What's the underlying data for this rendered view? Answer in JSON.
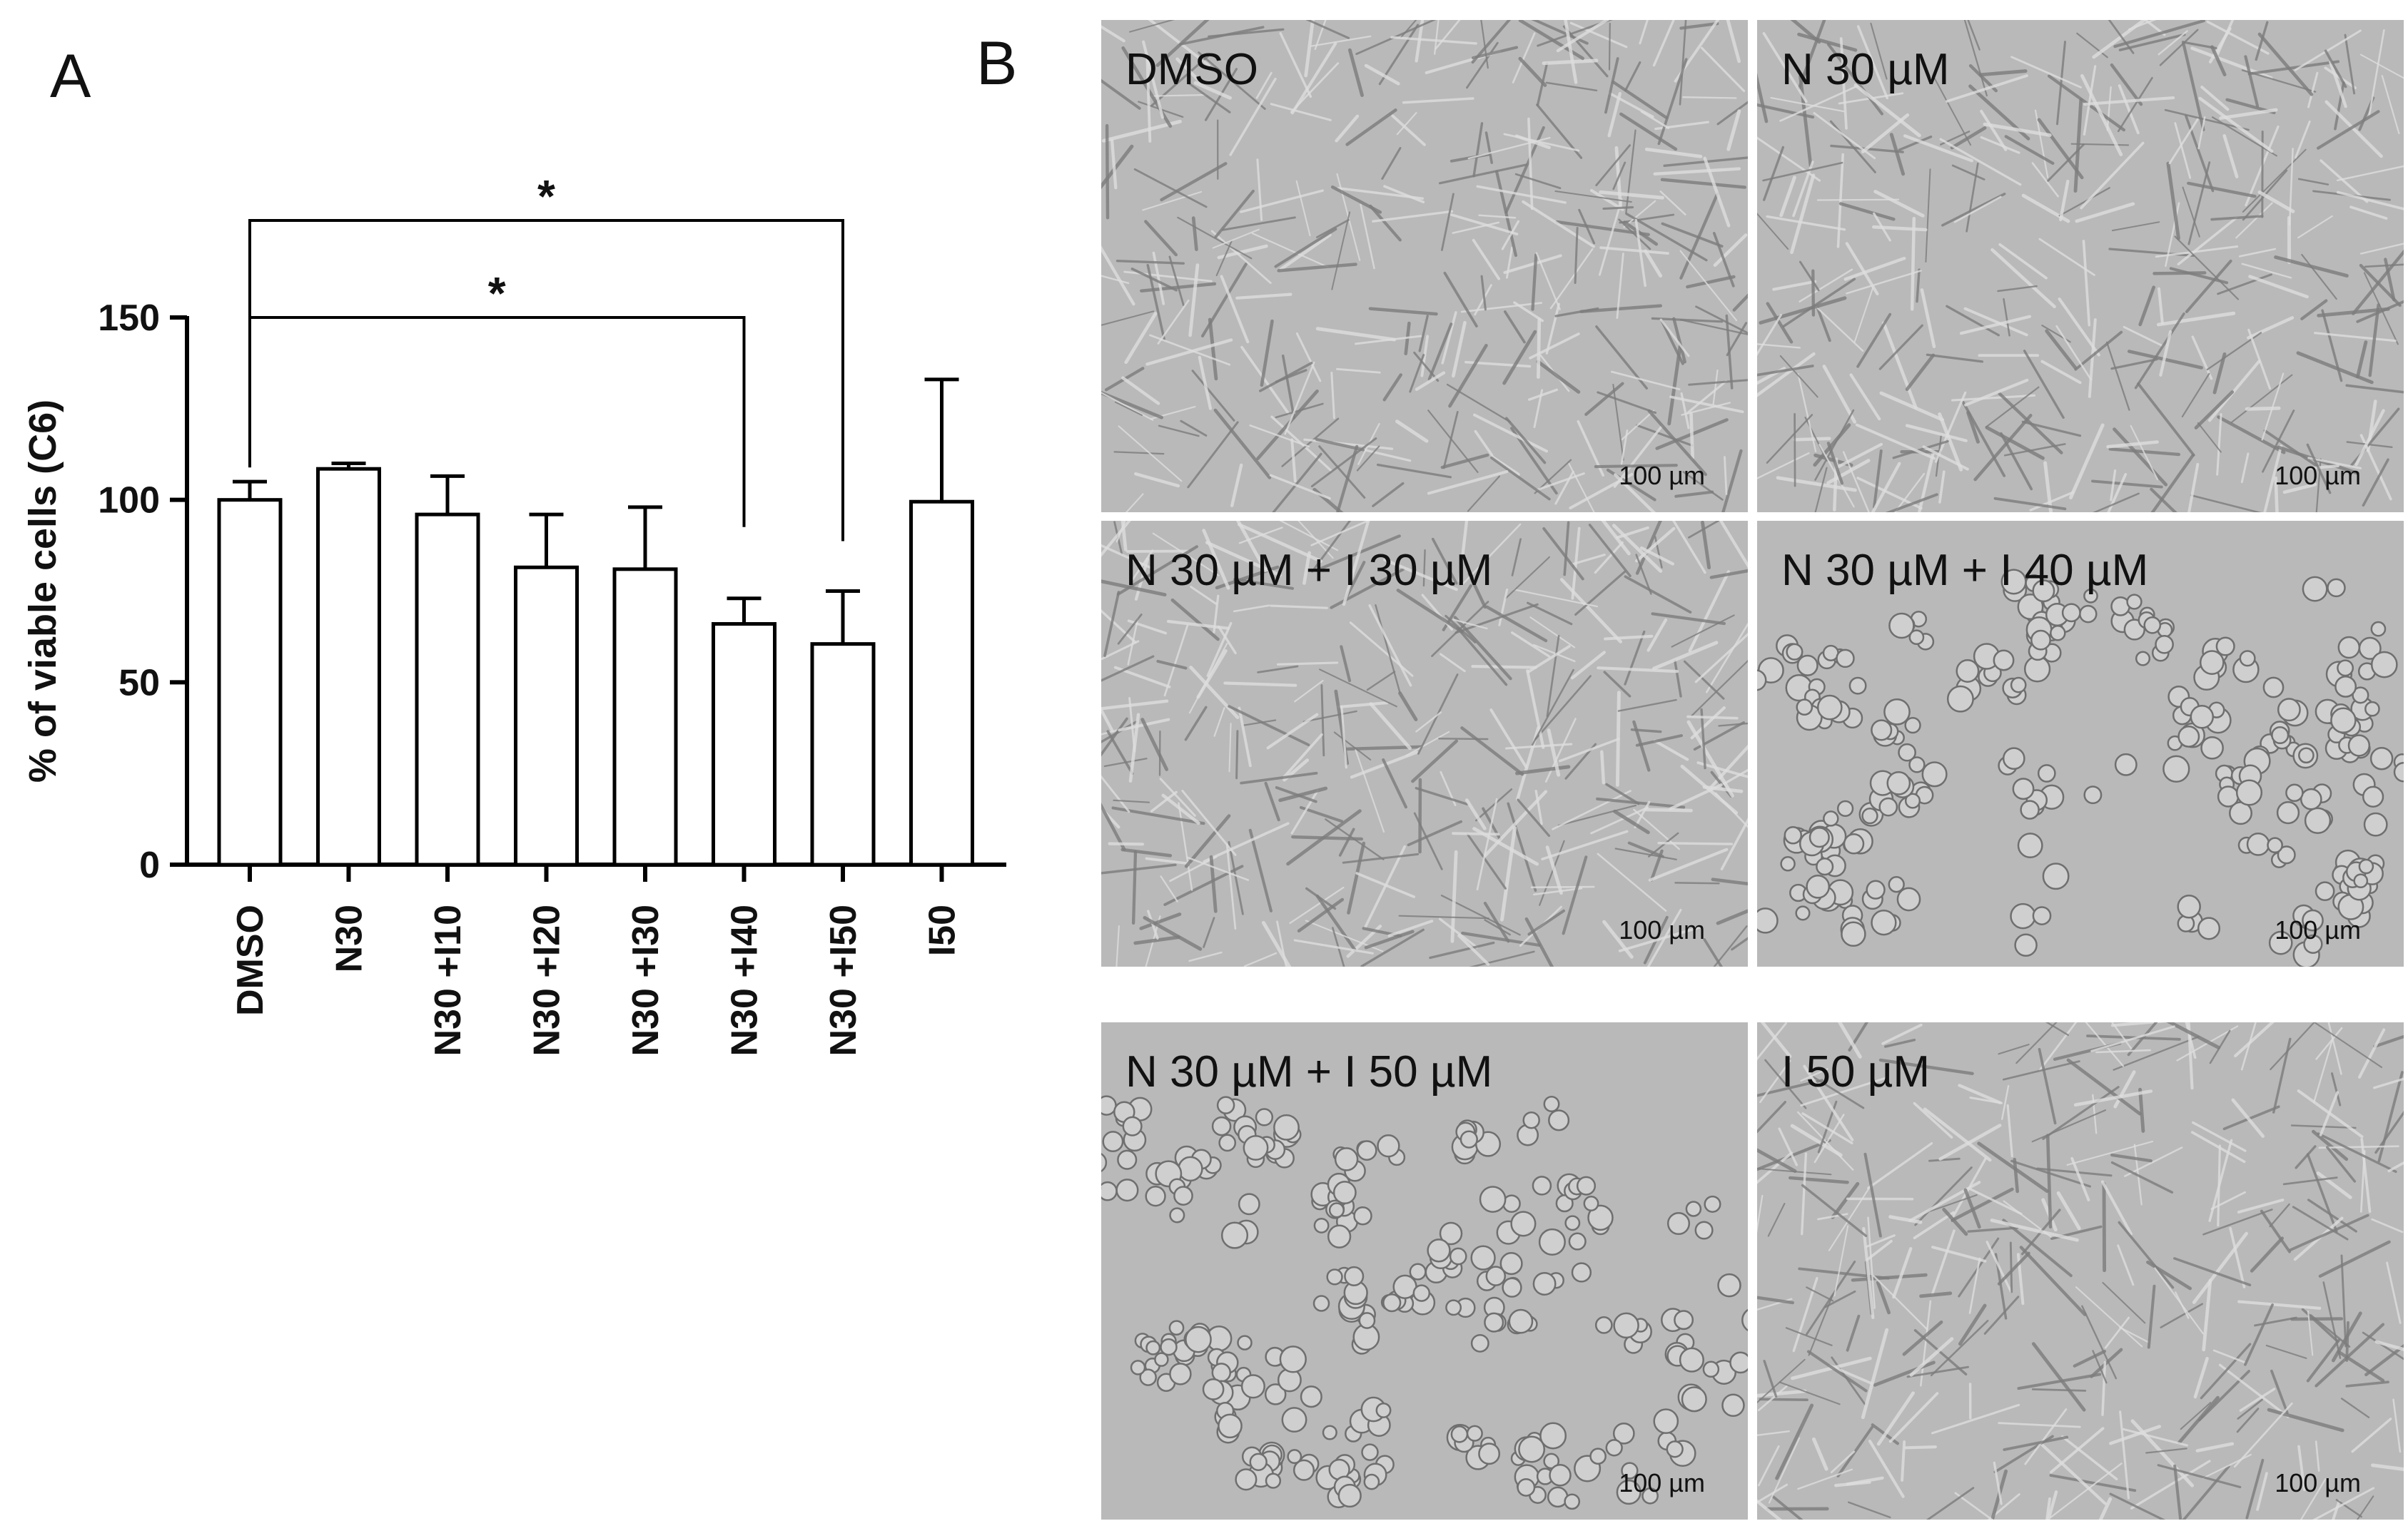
{
  "panel_a_letter": "A",
  "panel_b_letter": "B",
  "chart_data": {
    "type": "bar",
    "ylabel": "% of viable cells (C6)",
    "xlabel": "",
    "ylim": [
      0,
      150
    ],
    "yticks": [
      0,
      50,
      100,
      150
    ],
    "categories": [
      "DMSO",
      "N30",
      "N30 +I10",
      "N30 +I20",
      "N30 +I30",
      "N30 +I40",
      "N30 +I50",
      "I50"
    ],
    "values": [
      100,
      108.5,
      96,
      81.5,
      81,
      66,
      60.5,
      99.5
    ],
    "error_upper": [
      5,
      1.5,
      10.5,
      14.5,
      17,
      7,
      14.5,
      33.5
    ],
    "significance": [
      {
        "from": "DMSO",
        "to": "N30 +I40",
        "label": "*"
      },
      {
        "from": "DMSO",
        "to": "N30 +I50",
        "label": "*"
      }
    ],
    "grid": false,
    "bar_color": "#ffffff",
    "line_color": "#000000"
  },
  "micrographs": [
    {
      "label": "DMSO",
      "scale": "100 µm",
      "morphology": "confluent-spindle"
    },
    {
      "label": "N 30 µM",
      "scale": "100 µm",
      "morphology": "confluent-spindle"
    },
    {
      "label": "N 30 µM + I 30 µM",
      "scale": "100 µm",
      "morphology": "confluent-spindle"
    },
    {
      "label": "N 30 µM + I 40 µM",
      "scale": "100 µm",
      "morphology": "rounded-clusters"
    },
    {
      "label": "N 30 µM + I 50 µM",
      "scale": "100 µm",
      "morphology": "rounded-clusters"
    },
    {
      "label": "I 50 µM",
      "scale": "100 µm",
      "morphology": "confluent-spindle"
    }
  ]
}
